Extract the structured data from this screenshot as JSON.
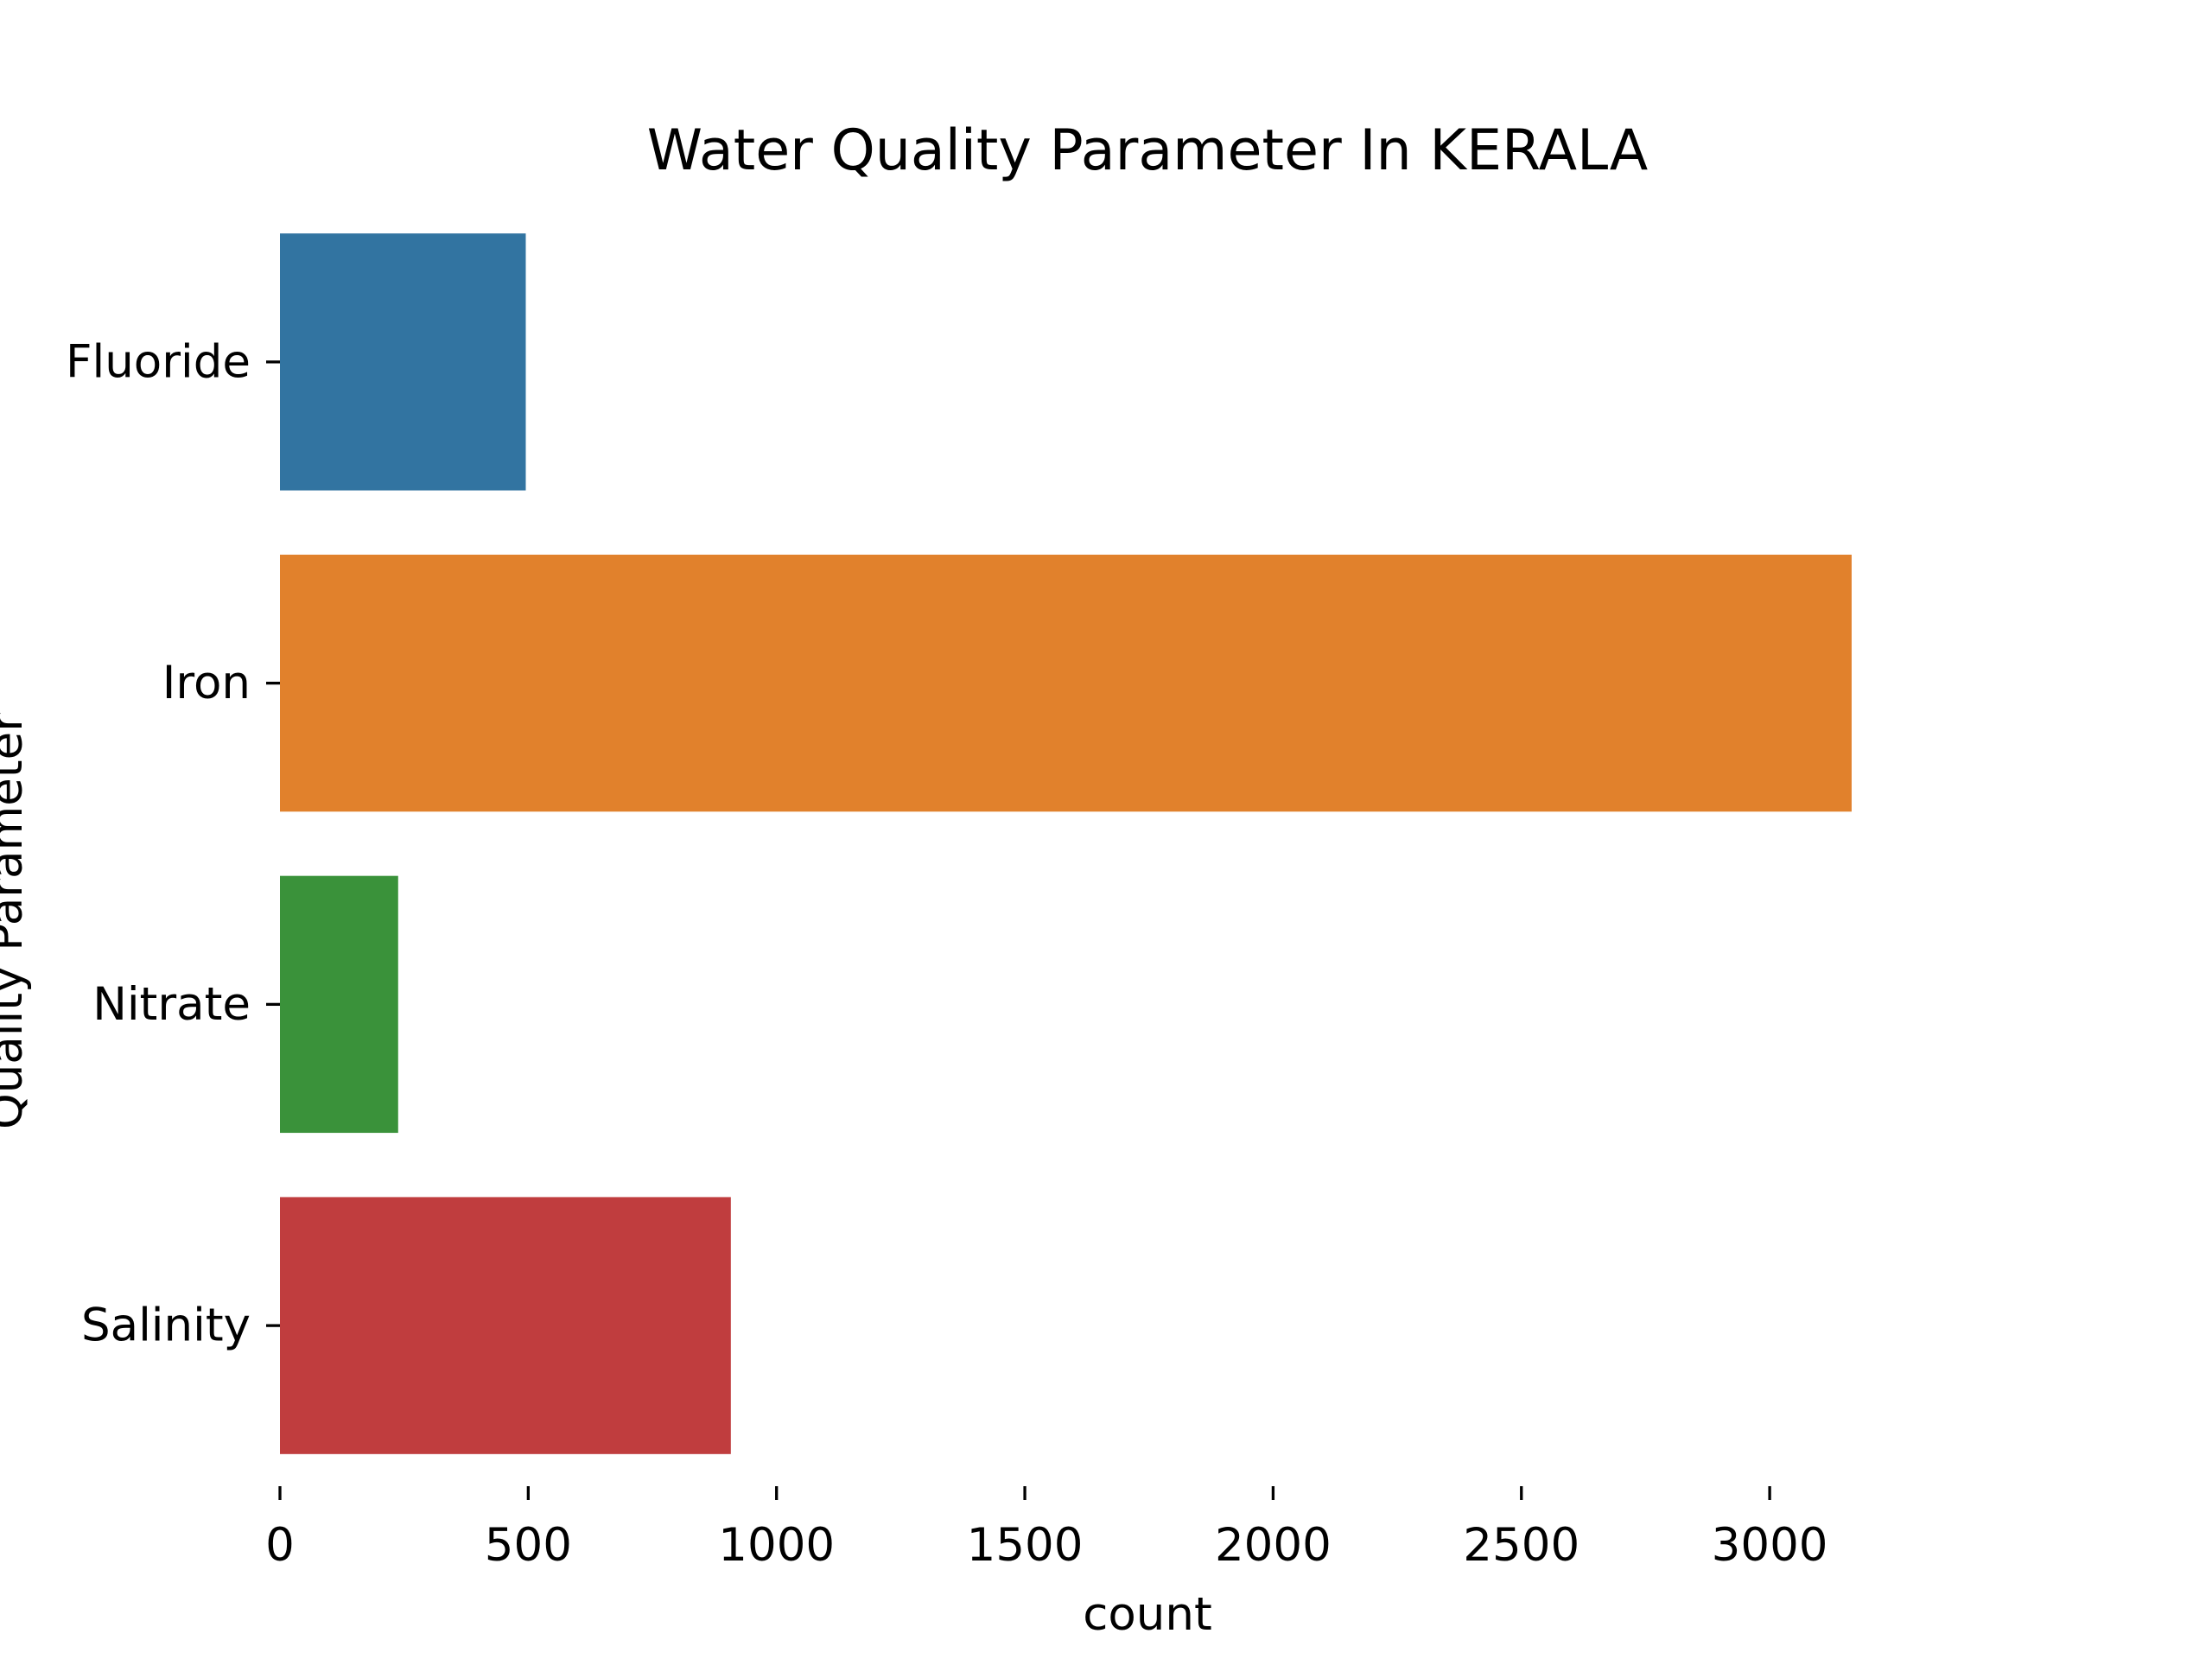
{
  "chart_data": {
    "type": "bar",
    "orientation": "horizontal",
    "title": "Water Quality Parameter In KERALA",
    "xlabel": "count",
    "ylabel": "Quality Parameter",
    "categories": [
      "Fluoride",
      "Iron",
      "Nitrate",
      "Salinity"
    ],
    "values": [
      495,
      3165,
      238,
      908
    ],
    "colors": [
      "#3274a1",
      "#e1812c",
      "#3a923a",
      "#c03d3e"
    ],
    "xlim": [
      0,
      3320
    ],
    "xticks": [
      0,
      500,
      1000,
      1500,
      2000,
      2500,
      3000
    ],
    "grid": false,
    "legend": "none"
  }
}
